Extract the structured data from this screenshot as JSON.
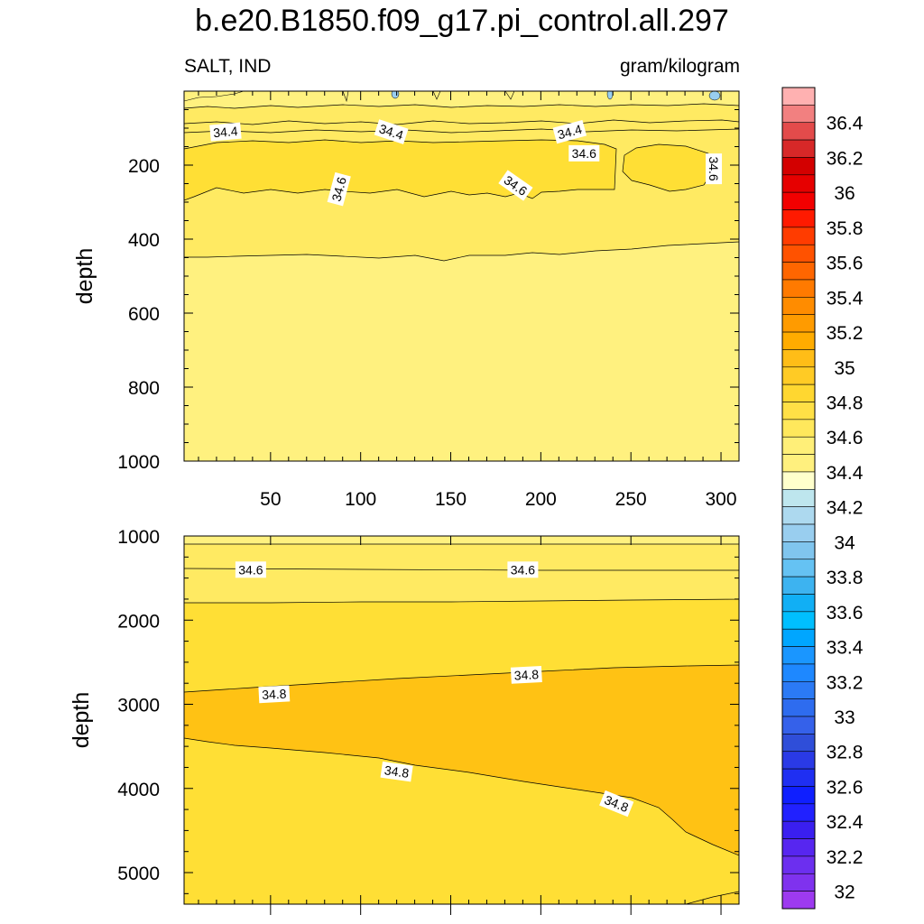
{
  "title": "b.e20.B1850.f09_g17.pi_control.all.297",
  "left_label": "SALT, IND",
  "right_label": "gram/kilogram",
  "chart_data": [
    {
      "type": "contour",
      "panel": "upper",
      "ylabel": "depth",
      "x_ticks": [
        50,
        100,
        150,
        200,
        250,
        300
      ],
      "x_range": [
        2,
        310
      ],
      "y_ticks": [
        200,
        400,
        600,
        800,
        1000
      ],
      "y_range": [
        0,
        1000
      ],
      "y_inverted": true,
      "contour_levels": [
        34.4,
        34.6
      ],
      "fill_regions": [
        {
          "level": 34.5,
          "color": "#FFED6F",
          "depth_range": [
            20,
            450
          ]
        },
        {
          "level": 34.6,
          "color": "#FFDF35",
          "depth_range": [
            160,
            300
          ]
        },
        {
          "level": 34.4,
          "color": "#FFF17F",
          "depth_range": [
            450,
            1000
          ]
        }
      ],
      "contour_labels": [
        {
          "text": "34.4",
          "x": 25,
          "y": 110
        },
        {
          "text": "34.4",
          "x": 117,
          "y": 110
        },
        {
          "text": "34.4",
          "x": 216,
          "y": 110
        },
        {
          "text": "34.6",
          "x": 224,
          "y": 168
        },
        {
          "text": "34.6",
          "x": 296,
          "y": 210
        },
        {
          "text": "34.6",
          "x": 88,
          "y": 265
        },
        {
          "text": "34.6",
          "x": 186,
          "y": 255
        }
      ]
    },
    {
      "type": "contour",
      "panel": "lower",
      "ylabel": "depth",
      "y_ticks": [
        1000,
        2000,
        3000,
        4000,
        5000
      ],
      "y_range": [
        1000,
        5375
      ],
      "y_inverted": true,
      "x_range": [
        2,
        310
      ],
      "contour_levels": [
        34.6,
        34.8
      ],
      "contour_labels": [
        {
          "text": "34.6",
          "x": 39,
          "y": 1400
        },
        {
          "text": "34.6",
          "x": 190,
          "y": 1400
        },
        {
          "text": "34.8",
          "x": 52,
          "y": 2880
        },
        {
          "text": "34.8",
          "x": 192,
          "y": 2650
        },
        {
          "text": "34.8",
          "x": 120,
          "y": 3800
        },
        {
          "text": "34.8",
          "x": 242,
          "y": 4180
        }
      ]
    }
  ],
  "colorbar": {
    "labels": [
      "36.4",
      "36.2",
      "36",
      "35.8",
      "35.6",
      "35.4",
      "35.2",
      "35",
      "34.8",
      "34.6",
      "34.4",
      "34.2",
      "34",
      "33.8",
      "33.6",
      "33.4",
      "33.2",
      "33",
      "32.8",
      "32.6",
      "32.4",
      "32.2",
      "32"
    ],
    "colors": [
      "#FFB1B1",
      "#F28080",
      "#E34B4B",
      "#D72828",
      "#D30000",
      "#E60000",
      "#F20000",
      "#FF1A00",
      "#FF3C00",
      "#FF5200",
      "#FF6600",
      "#FF7A00",
      "#FF8C00",
      "#FF9B00",
      "#FFAC00",
      "#FFBD17",
      "#FFCB25",
      "#FFD730",
      "#FFE046",
      "#FFE85C",
      "#FFEF78",
      "#FFF07E",
      "#FFFFCC",
      "#BEE6EE",
      "#ADD9EF",
      "#99CEEF",
      "#80C5EE",
      "#65C2F3",
      "#3DB3F0",
      "#11AFF5",
      "#00BFFF",
      "#00A6FF",
      "#1A96FF",
      "#1E88FF",
      "#2B7AF5",
      "#2E6CEF",
      "#3561EA",
      "#2F4ED9",
      "#2A3AE6",
      "#1F2FF2",
      "#0F1FFF",
      "#2121FF",
      "#3A1FF0",
      "#5726F0",
      "#6C2FEF",
      "#7F32EE",
      "#9D3AF0"
    ]
  }
}
